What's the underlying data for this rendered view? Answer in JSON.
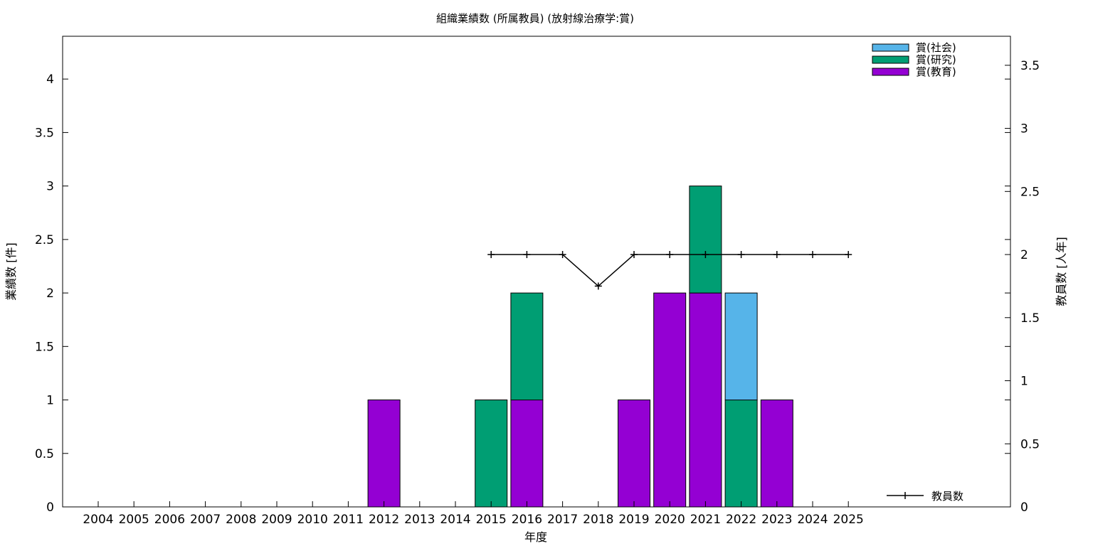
{
  "chart_data": {
    "type": "bar",
    "stacked": true,
    "title": "組織業績数 (所属教員) (放射線治療学:賞)",
    "xlabel": "年度",
    "ylabel": "業績数 [件]",
    "y2label": "教員数 [人年]",
    "ylim": [
      0,
      4.4
    ],
    "y2lim": [
      0,
      3.73
    ],
    "yticks": [
      "0",
      "0.5",
      "1",
      "1.5",
      "2",
      "2.5",
      "3",
      "3.5",
      "4"
    ],
    "y2ticks": [
      "0",
      "0.5",
      "1",
      "1.5",
      "2",
      "2.5",
      "3",
      "3.5"
    ],
    "grid": false,
    "legend_position": "top-right",
    "categories": [
      "2004",
      "2005",
      "2006",
      "2007",
      "2008",
      "2009",
      "2010",
      "2011",
      "2012",
      "2013",
      "2014",
      "2015",
      "2016",
      "2017",
      "2018",
      "2019",
      "2020",
      "2021",
      "2022",
      "2023",
      "2024",
      "2025"
    ],
    "series": [
      {
        "name": "賞(教育)",
        "color": "#9400d3",
        "values": [
          0,
          0,
          0,
          0,
          0,
          0,
          0,
          0,
          1,
          0,
          0,
          0,
          1,
          0,
          0,
          1,
          2,
          2,
          0,
          1,
          0,
          0
        ]
      },
      {
        "name": "賞(研究)",
        "color": "#009e73",
        "values": [
          0,
          0,
          0,
          0,
          0,
          0,
          0,
          0,
          0,
          0,
          0,
          1,
          1,
          0,
          0,
          0,
          0,
          1,
          1,
          0,
          0,
          0
        ]
      },
      {
        "name": "賞(社会)",
        "color": "#56b4e9",
        "values": [
          0,
          0,
          0,
          0,
          0,
          0,
          0,
          0,
          0,
          0,
          0,
          0,
          0,
          0,
          0,
          0,
          0,
          0,
          1,
          0,
          0,
          0
        ]
      }
    ],
    "line_series": {
      "name": "教員数",
      "color": "#000000",
      "axis": "y2",
      "points": [
        {
          "x": "2015",
          "y": 2
        },
        {
          "x": "2016",
          "y": 2
        },
        {
          "x": "2017",
          "y": 2
        },
        {
          "x": "2018",
          "y": 1.75
        },
        {
          "x": "2019",
          "y": 2
        },
        {
          "x": "2020",
          "y": 2
        },
        {
          "x": "2021",
          "y": 2
        },
        {
          "x": "2022",
          "y": 2
        },
        {
          "x": "2023",
          "y": 2
        },
        {
          "x": "2024",
          "y": 2
        },
        {
          "x": "2025",
          "y": 2
        }
      ]
    }
  }
}
